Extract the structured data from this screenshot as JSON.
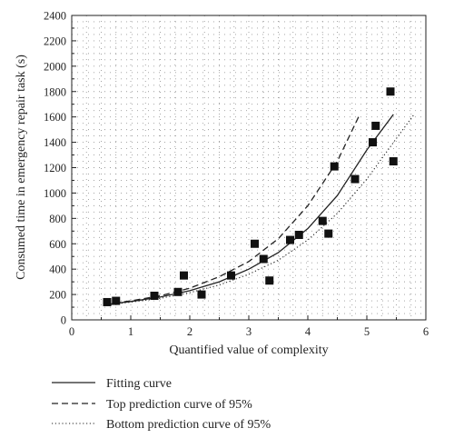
{
  "chart_data": {
    "type": "scatter",
    "xlabel": "Quantified value of complexity",
    "ylabel": "Consumed time in emergency repair task (s)",
    "xlim": [
      0,
      6
    ],
    "ylim": [
      0,
      2400
    ],
    "x_ticks": [
      0,
      1,
      2,
      3,
      4,
      5,
      6
    ],
    "y_ticks": [
      0,
      200,
      400,
      600,
      800,
      1000,
      1200,
      1400,
      1600,
      1800,
      2000,
      2200,
      2400
    ],
    "grid": "dotted",
    "legend_position": "bottom",
    "points": {
      "x": [
        0.6,
        0.75,
        1.4,
        1.8,
        1.9,
        2.2,
        2.7,
        3.1,
        3.25,
        3.35,
        3.7,
        3.85,
        4.25,
        4.35,
        4.45,
        4.8,
        5.1,
        5.15,
        5.4,
        5.45
      ],
      "y": [
        140,
        150,
        190,
        220,
        350,
        200,
        350,
        600,
        480,
        310,
        630,
        670,
        780,
        680,
        1210,
        1110,
        1400,
        1530,
        1800,
        1250
      ]
    },
    "series": [
      {
        "name": "Fitting curve",
        "style": "solid",
        "x": [
          0.55,
          1.0,
          1.5,
          2.0,
          2.5,
          3.0,
          3.5,
          4.0,
          4.5,
          5.0,
          5.45
        ],
        "y": [
          120,
          145,
          180,
          230,
          300,
          400,
          530,
          720,
          980,
          1340,
          1620
        ]
      },
      {
        "name": "Top prediction curve of 95%",
        "style": "dashed",
        "x": [
          0.55,
          1.0,
          1.5,
          2.0,
          2.5,
          3.0,
          3.5,
          4.0,
          4.5,
          4.88
        ],
        "y": [
          125,
          150,
          190,
          250,
          340,
          460,
          640,
          900,
          1250,
          1620
        ]
      },
      {
        "name": "Bottom prediction curve of 95%",
        "style": "dotted",
        "x": [
          0.55,
          1.0,
          1.5,
          2.0,
          2.5,
          3.0,
          3.5,
          4.0,
          4.5,
          5.0,
          5.5,
          5.8
        ],
        "y": [
          115,
          140,
          170,
          215,
          275,
          360,
          470,
          630,
          840,
          1110,
          1430,
          1620
        ]
      }
    ]
  }
}
